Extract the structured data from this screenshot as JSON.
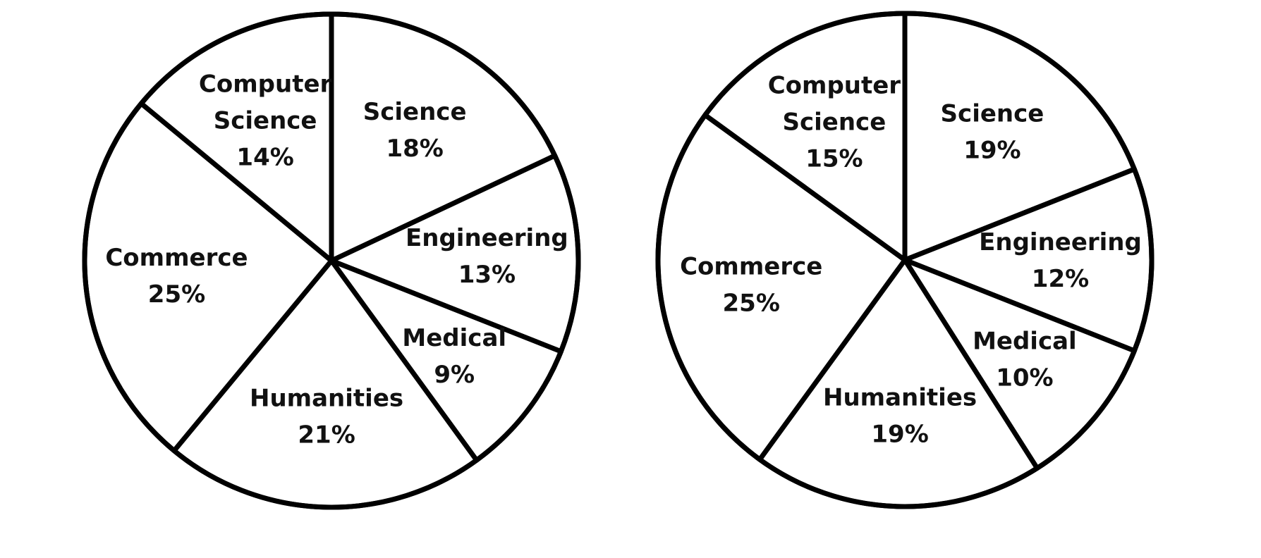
{
  "chart_data": [
    {
      "type": "pie",
      "slices": [
        {
          "label": [
            "Science"
          ],
          "value_text": "18%",
          "value": 18
        },
        {
          "label": [
            "Engineering"
          ],
          "value_text": "13%",
          "value": 13
        },
        {
          "label": [
            "Medical"
          ],
          "value_text": "9%",
          "value": 9
        },
        {
          "label": [
            "Humanities"
          ],
          "value_text": "21%",
          "value": 21
        },
        {
          "label": [
            "Commerce"
          ],
          "value_text": "25%",
          "value": 25
        },
        {
          "label": [
            "Computer",
            "Science"
          ],
          "value_text": "14%",
          "value": 14
        }
      ],
      "colors": {
        "fill": "#ffffff",
        "stroke": "#000000",
        "text": "#111111"
      }
    },
    {
      "type": "pie",
      "slices": [
        {
          "label": [
            "Science"
          ],
          "value_text": "19%",
          "value": 19
        },
        {
          "label": [
            "Engineering"
          ],
          "value_text": "12%",
          "value": 12
        },
        {
          "label": [
            "Medical"
          ],
          "value_text": "10%",
          "value": 10
        },
        {
          "label": [
            "Humanities"
          ],
          "value_text": "19%",
          "value": 19
        },
        {
          "label": [
            "Commerce"
          ],
          "value_text": "25%",
          "value": 25
        },
        {
          "label": [
            "Computer",
            "Science"
          ],
          "value_text": "15%",
          "value": 15
        }
      ],
      "colors": {
        "fill": "#ffffff",
        "stroke": "#000000",
        "text": "#111111"
      }
    }
  ]
}
